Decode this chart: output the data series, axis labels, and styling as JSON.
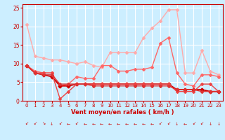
{
  "x": [
    0,
    1,
    2,
    3,
    4,
    5,
    6,
    7,
    8,
    9,
    10,
    11,
    12,
    13,
    14,
    15,
    16,
    17,
    18,
    19,
    20,
    21,
    22,
    23
  ],
  "series": [
    {
      "y": [
        20.5,
        12.0,
        11.5,
        11.0,
        11.0,
        10.5,
        10.0,
        10.5,
        9.5,
        9.0,
        13.0,
        13.0,
        13.0,
        13.0,
        17.0,
        19.5,
        21.5,
        24.5,
        24.5,
        7.5,
        7.5,
        13.5,
        8.0,
        7.0
      ],
      "color": "#ffaaaa",
      "lw": 1.0,
      "marker": "D",
      "ms": 2.0
    },
    {
      "y": [
        9.5,
        8.0,
        7.5,
        7.5,
        4.0,
        4.5,
        6.5,
        6.0,
        6.0,
        9.5,
        9.5,
        8.0,
        8.0,
        8.5,
        8.5,
        9.0,
        15.5,
        17.0,
        7.5,
        4.5,
        4.0,
        7.0,
        7.0,
        6.5
      ],
      "color": "#ff6666",
      "lw": 1.0,
      "marker": "D",
      "ms": 2.0
    },
    {
      "y": [
        9.5,
        7.5,
        7.0,
        6.5,
        4.0,
        4.0,
        4.5,
        4.5,
        4.5,
        4.5,
        4.5,
        4.5,
        4.5,
        4.5,
        4.5,
        4.5,
        4.5,
        4.5,
        3.0,
        3.0,
        3.0,
        3.0,
        2.5,
        2.5
      ],
      "color": "#cc0000",
      "lw": 1.3,
      "marker": "D",
      "ms": 2.5
    },
    {
      "y": [
        9.5,
        7.5,
        7.5,
        7.5,
        0.5,
        2.5,
        4.5,
        4.5,
        4.5,
        4.5,
        4.5,
        4.5,
        4.5,
        4.5,
        4.5,
        4.5,
        4.5,
        4.5,
        2.5,
        2.5,
        2.5,
        4.5,
        4.5,
        2.5
      ],
      "color": "#ee4444",
      "lw": 1.0,
      "marker": "D",
      "ms": 2.0
    },
    {
      "y": [
        9.5,
        7.5,
        7.0,
        7.0,
        4.5,
        4.5,
        4.5,
        4.5,
        4.0,
        4.0,
        4.0,
        4.0,
        4.0,
        4.0,
        4.0,
        4.0,
        4.0,
        4.0,
        3.0,
        3.0,
        3.0,
        2.5,
        2.5,
        2.5
      ],
      "color": "#dd3333",
      "lw": 1.0,
      "marker": "D",
      "ms": 2.0
    }
  ],
  "arrow_chars": [
    "↙",
    "↙",
    "↘",
    "↓",
    "↙",
    "←",
    "↙",
    "←",
    "←",
    "←",
    "←",
    "←",
    "←",
    "←",
    "←",
    "←",
    "↙",
    "↙",
    "↓",
    "←",
    "↙",
    "↙",
    "↓",
    "↓"
  ],
  "xlabel": "Vent moyen/en rafales ( km/h )",
  "ylim": [
    0,
    26
  ],
  "yticks": [
    0,
    5,
    10,
    15,
    20,
    25
  ],
  "xticks": [
    0,
    1,
    2,
    3,
    4,
    5,
    6,
    7,
    8,
    9,
    10,
    11,
    12,
    13,
    14,
    15,
    16,
    17,
    18,
    19,
    20,
    21,
    22,
    23
  ],
  "xlim": [
    -0.5,
    23.5
  ],
  "bg_color": "#cceeff",
  "grid_color": "#ffffff",
  "axis_color": "#cc0000",
  "tick_color": "#cc0000",
  "label_color": "#cc0000"
}
